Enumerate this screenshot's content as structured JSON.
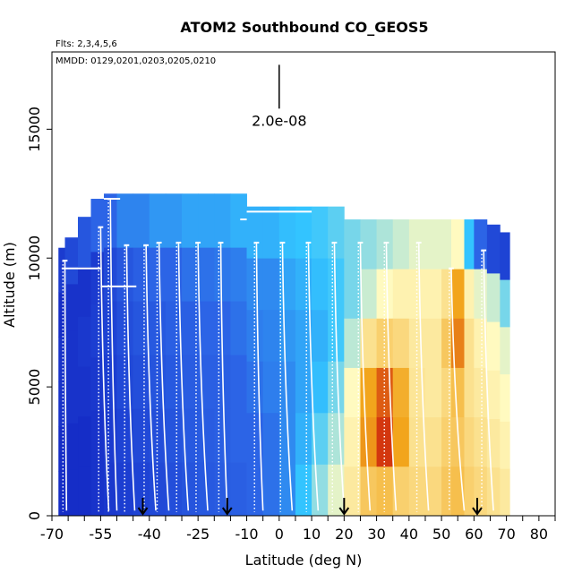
{
  "chart_data": {
    "type": "heatmap",
    "title": "ATOM2 Southbound CO_GEOS5",
    "annotations": {
      "flights": "Flts: 2,3,4,5,6",
      "dates": "MMDD: 0129,0201,0203,0205,0210",
      "scale_label": "2.0e-08"
    },
    "xlabel": "Latitude (deg N)",
    "ylabel": "Altitude (m)",
    "xlim": [
      -70,
      85
    ],
    "ylim": [
      0,
      18000
    ],
    "x_ticks": [
      -70,
      -55,
      -40,
      -25,
      -10,
      0,
      10,
      20,
      30,
      40,
      50,
      60,
      70,
      80
    ],
    "x_tick_labels": [
      "-70",
      "-55",
      "-40",
      "-25",
      "-10",
      "0",
      "10",
      "20",
      "30",
      "40",
      "50",
      "60",
      "70",
      "80"
    ],
    "x_minor_ticks": [
      -65,
      -60,
      -50,
      -45,
      -35,
      -30,
      -20,
      -15,
      -5,
      5,
      15,
      25,
      35,
      45,
      55,
      65,
      75,
      85
    ],
    "y_ticks": [
      0,
      5000,
      10000,
      15000
    ],
    "y_tick_labels": [
      "0",
      "5000",
      "10000",
      "15000"
    ],
    "scale_bar": {
      "x": 0,
      "y_bottom": 15800,
      "y_top": 17500
    },
    "arrow_latitudes": [
      -42,
      -16,
      20,
      61
    ],
    "colors": {
      "low": "#0a12b8",
      "mid_low": "#2c64e6",
      "mid": "#33c4ff",
      "mid_high": "#fffac0",
      "high": "#f2a51c",
      "max": "#c8120a"
    },
    "heatmap_columns": [
      {
        "lat_min": -68,
        "lat_max": -66,
        "top": 10400,
        "cells": [
          0.1,
          0.1,
          0.12,
          0.12,
          0.1,
          0.15
        ]
      },
      {
        "lat_min": -66,
        "lat_max": -62,
        "top": 10800,
        "cells": [
          0.1,
          0.1,
          0.12,
          0.12,
          0.12,
          0.2
        ]
      },
      {
        "lat_min": -62,
        "lat_max": -58,
        "top": 11600,
        "cells": [
          0.1,
          0.1,
          0.12,
          0.14,
          0.12,
          0.25
        ]
      },
      {
        "lat_min": -58,
        "lat_max": -54,
        "top": 12300,
        "cells": [
          0.12,
          0.12,
          0.14,
          0.16,
          0.15,
          0.3
        ]
      },
      {
        "lat_min": -54,
        "lat_max": -50,
        "top": 12500,
        "cells": [
          0.14,
          0.15,
          0.16,
          0.18,
          0.2,
          0.3
        ]
      },
      {
        "lat_min": -50,
        "lat_max": -45,
        "top": 12500,
        "cells": [
          0.16,
          0.18,
          0.2,
          0.22,
          0.25,
          0.35
        ]
      },
      {
        "lat_min": -45,
        "lat_max": -40,
        "top": 12500,
        "cells": [
          0.18,
          0.2,
          0.22,
          0.25,
          0.28,
          0.35
        ]
      },
      {
        "lat_min": -40,
        "lat_max": -35,
        "top": 12500,
        "cells": [
          0.2,
          0.22,
          0.24,
          0.26,
          0.3,
          0.38
        ]
      },
      {
        "lat_min": -35,
        "lat_max": -30,
        "top": 12500,
        "cells": [
          0.22,
          0.24,
          0.26,
          0.28,
          0.3,
          0.38
        ]
      },
      {
        "lat_min": -30,
        "lat_max": -25,
        "top": 12500,
        "cells": [
          0.24,
          0.26,
          0.27,
          0.28,
          0.32,
          0.4
        ]
      },
      {
        "lat_min": -25,
        "lat_max": -20,
        "top": 12500,
        "cells": [
          0.26,
          0.27,
          0.28,
          0.3,
          0.32,
          0.4
        ]
      },
      {
        "lat_min": -20,
        "lat_max": -15,
        "top": 12500,
        "cells": [
          0.27,
          0.28,
          0.28,
          0.3,
          0.33,
          0.4
        ]
      },
      {
        "lat_min": -15,
        "lat_max": -10,
        "top": 12500,
        "cells": [
          0.28,
          0.3,
          0.3,
          0.32,
          0.34,
          0.42
        ]
      },
      {
        "lat_min": -10,
        "lat_max": -5,
        "top": 12000,
        "cells": [
          0.3,
          0.3,
          0.32,
          0.34,
          0.36,
          0.42
        ]
      },
      {
        "lat_min": -5,
        "lat_max": 0,
        "top": 12000,
        "cells": [
          0.32,
          0.32,
          0.34,
          0.35,
          0.36,
          0.42
        ]
      },
      {
        "lat_min": 0,
        "lat_max": 5,
        "top": 12000,
        "cells": [
          0.36,
          0.36,
          0.36,
          0.38,
          0.4,
          0.44
        ]
      },
      {
        "lat_min": 5,
        "lat_max": 10,
        "top": 12000,
        "cells": [
          0.45,
          0.42,
          0.4,
          0.4,
          0.42,
          0.45
        ]
      },
      {
        "lat_min": 10,
        "lat_max": 15,
        "top": 12000,
        "cells": [
          0.52,
          0.48,
          0.44,
          0.42,
          0.44,
          0.46
        ]
      },
      {
        "lat_min": 15,
        "lat_max": 20,
        "top": 12000,
        "cells": [
          0.58,
          0.54,
          0.5,
          0.46,
          0.46,
          0.48
        ]
      },
      {
        "lat_min": 20,
        "lat_max": 25,
        "top": 11500,
        "cells": [
          0.64,
          0.62,
          0.6,
          0.55,
          0.5,
          0.5
        ]
      },
      {
        "lat_min": 25,
        "lat_max": 30,
        "top": 11500,
        "cells": [
          0.72,
          0.82,
          0.8,
          0.66,
          0.56,
          0.52
        ]
      },
      {
        "lat_min": 30,
        "lat_max": 35,
        "top": 11500,
        "cells": [
          0.74,
          0.95,
          0.9,
          0.7,
          0.6,
          0.54
        ]
      },
      {
        "lat_min": 35,
        "lat_max": 40,
        "top": 11500,
        "cells": [
          0.7,
          0.8,
          0.78,
          0.68,
          0.62,
          0.56
        ]
      },
      {
        "lat_min": 40,
        "lat_max": 45,
        "top": 11500,
        "cells": [
          0.68,
          0.66,
          0.65,
          0.64,
          0.62,
          0.58
        ]
      },
      {
        "lat_min": 45,
        "lat_max": 50,
        "top": 11500,
        "cells": [
          0.68,
          0.66,
          0.64,
          0.64,
          0.62,
          0.58
        ]
      },
      {
        "lat_min": 50,
        "lat_max": 53,
        "top": 11500,
        "cells": [
          0.72,
          0.7,
          0.68,
          0.72,
          0.66,
          0.58
        ]
      },
      {
        "lat_min": 53,
        "lat_max": 57,
        "top": 11500,
        "cells": [
          0.74,
          0.72,
          0.74,
          0.85,
          0.8,
          0.6
        ]
      },
      {
        "lat_min": 57,
        "lat_max": 60,
        "top": 11500,
        "cells": [
          0.7,
          0.68,
          0.66,
          0.66,
          0.62,
          0.45
        ]
      },
      {
        "lat_min": 60,
        "lat_max": 64,
        "top": 11500,
        "cells": [
          0.68,
          0.66,
          0.64,
          0.62,
          0.58,
          0.3
        ]
      },
      {
        "lat_min": 64,
        "lat_max": 68,
        "top": 11300,
        "cells": [
          0.66,
          0.64,
          0.62,
          0.6,
          0.56,
          0.2
        ]
      },
      {
        "lat_min": 68,
        "lat_max": 71,
        "top": 11000,
        "cells": [
          0.64,
          0.62,
          0.6,
          0.58,
          0.5,
          0.18
        ]
      }
    ],
    "flight_profiles": [
      {
        "lat_top": -66,
        "lat_bottom": -65.5,
        "top": 9900
      },
      {
        "lat_top": -55,
        "lat_bottom": -52.5,
        "top": 11200
      },
      {
        "lat_top": -52,
        "lat_bottom": -50,
        "top": 12300
      },
      {
        "lat_top": -47,
        "lat_bottom": -44.5,
        "top": 10500
      },
      {
        "lat_top": -41,
        "lat_bottom": -38,
        "top": 10500
      },
      {
        "lat_top": -37,
        "lat_bottom": -34,
        "top": 10600
      },
      {
        "lat_top": -31,
        "lat_bottom": -28,
        "top": 10600
      },
      {
        "lat_top": -25,
        "lat_bottom": -22,
        "top": 10600
      },
      {
        "lat_top": -18,
        "lat_bottom": -16,
        "top": 10600
      },
      {
        "lat_top": -7,
        "lat_bottom": -5,
        "top": 10600
      },
      {
        "lat_top": 1,
        "lat_bottom": 4,
        "top": 10600
      },
      {
        "lat_top": 9,
        "lat_bottom": 12,
        "top": 10600
      },
      {
        "lat_top": 17,
        "lat_bottom": 20,
        "top": 10600
      },
      {
        "lat_top": 25,
        "lat_bottom": 28,
        "top": 10600
      },
      {
        "lat_top": 33,
        "lat_bottom": 36,
        "top": 10600
      },
      {
        "lat_top": 43,
        "lat_bottom": 46,
        "top": 10600
      },
      {
        "lat_top": 53,
        "lat_bottom": 57,
        "top": 9600
      },
      {
        "lat_top": 63,
        "lat_bottom": 66,
        "top": 10300
      }
    ],
    "cruise_segments": [
      {
        "lat_start": -67,
        "lat_end": -55,
        "altitude": 9600
      },
      {
        "lat_start": -55,
        "lat_end": -44,
        "altitude": 8900
      },
      {
        "lat_start": -54,
        "lat_end": -49,
        "altitude": 12300
      },
      {
        "lat_start": -12,
        "lat_end": -10,
        "altitude": 11500
      },
      {
        "lat_start": -10,
        "lat_end": 10,
        "altitude": 11800
      },
      {
        "lat_start": 69,
        "lat_end": 71,
        "altitude": 11300
      }
    ]
  }
}
